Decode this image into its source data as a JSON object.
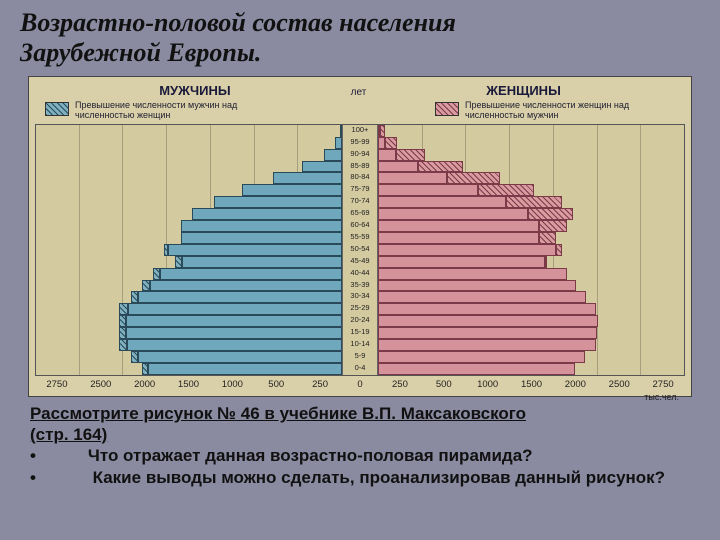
{
  "title_line1": "Возрастно-половой состав населения",
  "title_line2": "Зарубежной Европы.",
  "title_fontsize": 26,
  "chart": {
    "header_left": "МУЖЧИНЫ",
    "header_right": "ЖЕНЩИНЫ",
    "header_center": "лет",
    "header_fontsize": 13,
    "legend_left": "Превышение численности мужчин над численностью женщин",
    "legend_right": "Превышение численности женщин над численностью мужчин",
    "legend_fontsize": 9,
    "age_labels": [
      "100+",
      "95-99",
      "90-94",
      "85-89",
      "80-84",
      "75-79",
      "70-74",
      "65-69",
      "60-64",
      "55-59",
      "50-54",
      "45-49",
      "40-44",
      "35-39",
      "30-34",
      "25-29",
      "20-24",
      "15-19",
      "10-14",
      "5-9",
      "0-4"
    ],
    "age_fontsize": 7.5,
    "xticks": [
      "0",
      "250",
      "500",
      "1000",
      "1500",
      "2000",
      "2500",
      "2750"
    ],
    "xaxis_unit": "тыс.чел.",
    "xaxis_fontsize": 9.5,
    "xmax": 2750,
    "male_color": "#6fa8bc",
    "female_color": "#d6929a",
    "male_border": "#2a4a5a",
    "female_border": "#7a3a48",
    "background": "#d4caa0",
    "grid_color": "rgba(80,80,60,0.35)",
    "pyramid_height": 252,
    "male": [
      {
        "v": 20,
        "ex": 0
      },
      {
        "v": 60,
        "ex": 0
      },
      {
        "v": 160,
        "ex": 0
      },
      {
        "v": 360,
        "ex": 0
      },
      {
        "v": 620,
        "ex": 0
      },
      {
        "v": 900,
        "ex": 0
      },
      {
        "v": 1150,
        "ex": 0
      },
      {
        "v": 1350,
        "ex": 0
      },
      {
        "v": 1450,
        "ex": 0
      },
      {
        "v": 1450,
        "ex": 0
      },
      {
        "v": 1600,
        "ex": 40
      },
      {
        "v": 1500,
        "ex": 60
      },
      {
        "v": 1700,
        "ex": 60
      },
      {
        "v": 1800,
        "ex": 70
      },
      {
        "v": 1900,
        "ex": 70
      },
      {
        "v": 2000,
        "ex": 80
      },
      {
        "v": 2000,
        "ex": 60
      },
      {
        "v": 2000,
        "ex": 60
      },
      {
        "v": 2000,
        "ex": 70
      },
      {
        "v": 1900,
        "ex": 70
      },
      {
        "v": 1800,
        "ex": 60
      }
    ],
    "female": [
      {
        "v": 60,
        "ex": 40
      },
      {
        "v": 170,
        "ex": 110
      },
      {
        "v": 420,
        "ex": 260
      },
      {
        "v": 760,
        "ex": 400
      },
      {
        "v": 1100,
        "ex": 480
      },
      {
        "v": 1400,
        "ex": 500
      },
      {
        "v": 1650,
        "ex": 500
      },
      {
        "v": 1750,
        "ex": 400
      },
      {
        "v": 1700,
        "ex": 250
      },
      {
        "v": 1600,
        "ex": 150
      },
      {
        "v": 1650,
        "ex": 50
      },
      {
        "v": 1520,
        "ex": 20
      },
      {
        "v": 1700,
        "ex": 0
      },
      {
        "v": 1780,
        "ex": 0
      },
      {
        "v": 1870,
        "ex": 0
      },
      {
        "v": 1960,
        "ex": 0
      },
      {
        "v": 1980,
        "ex": 0
      },
      {
        "v": 1970,
        "ex": 0
      },
      {
        "v": 1960,
        "ex": 0
      },
      {
        "v": 1860,
        "ex": 0
      },
      {
        "v": 1770,
        "ex": 0
      }
    ]
  },
  "caption": {
    "line1": "Рассмотрите  рисунок  № 46  в учебнике В.П. Максаковского",
    "line2": "(стр. 164)",
    "bullet1_prefix": "•           ",
    "bullet1_text": "Что отражает данная возрастно-половая пирамида?",
    "bullet2_prefix": "•            ",
    "bullet2_text": "Какие выводы можно сделать, проанализировав данный рисунок?",
    "fontsize": 17
  }
}
